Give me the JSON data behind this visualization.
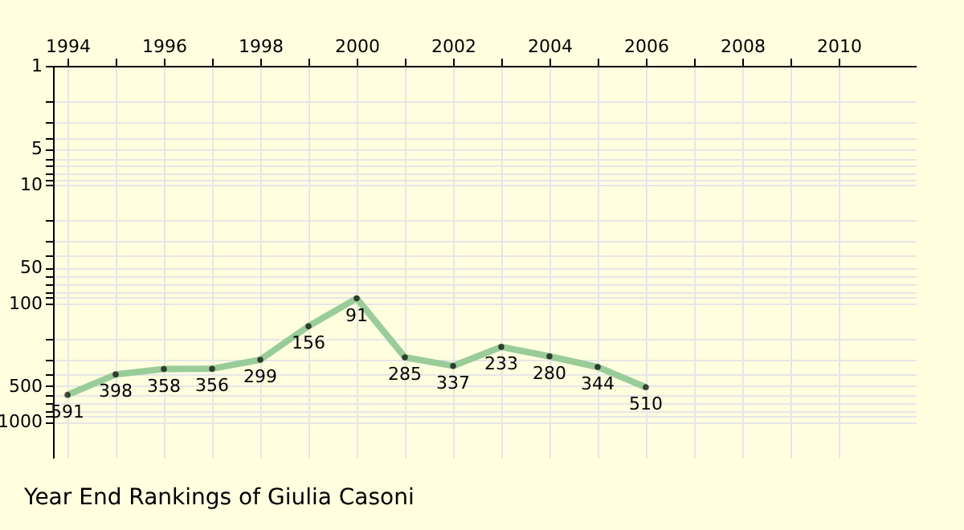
{
  "chart_data": {
    "type": "line",
    "title": "Year End Rankings of Giulia Casoni",
    "x": [
      1994,
      1995,
      1996,
      1997,
      1998,
      1999,
      2000,
      2001,
      2002,
      2003,
      2004,
      2005,
      2006
    ],
    "series": [
      {
        "color": "#99cc99",
        "values": [
          591,
          398,
          358,
          356,
          299,
          156,
          91,
          285,
          337,
          233,
          280,
          344,
          510
        ]
      }
    ],
    "xlim": [
      1993.7,
      2011.6
    ],
    "xticks": [
      1994,
      {
        "value": 1995,
        "label": null
      },
      1996,
      {
        "value": 1997,
        "label": null
      },
      1998,
      {
        "value": 1999,
        "label": null
      },
      2000,
      {
        "value": 2001,
        "label": null
      },
      2002,
      {
        "value": 2003,
        "label": null
      },
      2004,
      {
        "value": 2005,
        "label": null
      },
      2006,
      {
        "value": 2007,
        "label": null
      },
      2008,
      {
        "value": 2009,
        "label": null
      },
      2010
    ],
    "ylim": [
      2000,
      1
    ],
    "yticks": [
      1,
      {
        "value": 2,
        "label": null
      },
      {
        "value": 3,
        "label": null
      },
      {
        "value": 4,
        "label": null
      },
      5,
      {
        "value": 6,
        "label": null
      },
      {
        "value": 7,
        "label": null
      },
      {
        "value": 8,
        "label": null
      },
      {
        "value": 9,
        "label": null
      },
      10,
      {
        "value": 20,
        "label": null
      },
      {
        "value": 30,
        "label": null
      },
      {
        "value": 40,
        "label": null
      },
      50,
      {
        "value": 60,
        "label": null
      },
      {
        "value": 70,
        "label": null
      },
      {
        "value": 80,
        "label": null
      },
      {
        "value": 90,
        "label": null
      },
      100,
      {
        "value": 200,
        "label": null
      },
      {
        "value": 300,
        "label": null
      },
      {
        "value": 400,
        "label": null
      },
      500,
      {
        "value": 600,
        "label": null
      },
      {
        "value": 700,
        "label": null
      },
      {
        "value": 800,
        "label": null
      },
      {
        "value": 900,
        "label": null
      },
      1000
    ],
    "log": true,
    "grid": true,
    "marker": "circle",
    "line_style": "solid",
    "data_labels": true
  }
}
